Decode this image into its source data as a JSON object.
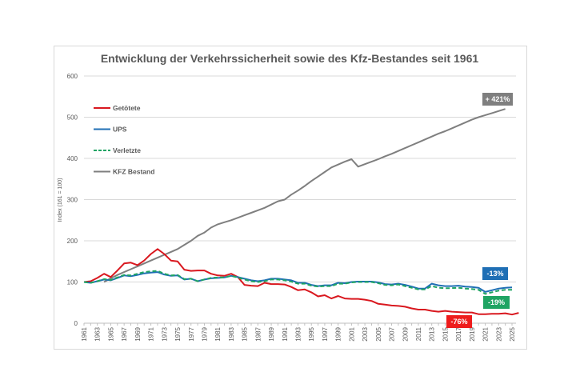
{
  "chart_data": {
    "type": "line",
    "title": "Entwicklung der Verkehrssicherheit sowie des Kfz-Bestandes seit 1961",
    "ylabel": "Index (161 = 100)",
    "xlabel": "",
    "ylim": [
      0,
      600
    ],
    "yticks": [
      0,
      100,
      200,
      300,
      400,
      500,
      600
    ],
    "xrange": [
      1961,
      2025
    ],
    "xticks": [
      1961,
      1963,
      1965,
      1967,
      1969,
      1971,
      1973,
      1975,
      1977,
      1979,
      1981,
      1983,
      1985,
      1987,
      1989,
      1991,
      1993,
      1995,
      1997,
      1999,
      2001,
      2003,
      2005,
      2007,
      2009,
      2011,
      2013,
      2015,
      2017,
      2019,
      2021,
      2023,
      2025
    ],
    "grid": "horizontal",
    "legend_position": "top-left",
    "series": [
      {
        "name": "Getötete",
        "color": "#d9181f",
        "dash": false,
        "start": 1961,
        "values": [
          100,
          102,
          110,
          120,
          112,
          128,
          145,
          147,
          141,
          152,
          168,
          180,
          168,
          152,
          150,
          130,
          127,
          128,
          128,
          120,
          116,
          115,
          120,
          112,
          93,
          91,
          90,
          98,
          95,
          95,
          94,
          88,
          80,
          82,
          75,
          65,
          68,
          60,
          66,
          60,
          59,
          59,
          57,
          54,
          47,
          45,
          43,
          42,
          40,
          36,
          33,
          33,
          30,
          28,
          30,
          28,
          27,
          26,
          26,
          22,
          22,
          23,
          23,
          24,
          21,
          25
        ]
      },
      {
        "name": "UPS",
        "color": "#1f6fb5",
        "dash": false,
        "start": 1961,
        "values": [
          100,
          98,
          102,
          106,
          104,
          110,
          116,
          114,
          117,
          121,
          123,
          124,
          118,
          115,
          116,
          106,
          108,
          102,
          106,
          109,
          110,
          111,
          115,
          112,
          108,
          104,
          102,
          104,
          108,
          108,
          106,
          104,
          98,
          98,
          93,
          90,
          92,
          92,
          98,
          97,
          100,
          101,
          101,
          101,
          99,
          95,
          94,
          96,
          93,
          89,
          84,
          84,
          96,
          92,
          90,
          90,
          91,
          89,
          88,
          86,
          76,
          80,
          84,
          86,
          87
        ]
      },
      {
        "name": "Verletzte",
        "color": "#1fa463",
        "dash": true,
        "start": 1961,
        "values": [
          100,
          98,
          102,
          107,
          105,
          111,
          117,
          116,
          120,
          124,
          126,
          127,
          120,
          116,
          117,
          107,
          108,
          102,
          106,
          110,
          111,
          111,
          115,
          111,
          106,
          102,
          100,
          102,
          106,
          106,
          104,
          101,
          96,
          96,
          91,
          89,
          90,
          90,
          96,
          96,
          99,
          100,
          100,
          100,
          97,
          93,
          92,
          94,
          90,
          86,
          82,
          82,
          90,
          86,
          85,
          85,
          86,
          84,
          83,
          81,
          71,
          75,
          79,
          81,
          81
        ]
      },
      {
        "name": "KFZ Bestand",
        "color": "#7f7f7f",
        "dash": false,
        "start": 1961,
        "values": [
          100,
          109,
          117,
          124,
          131,
          138,
          145,
          152,
          159,
          166,
          173,
          180,
          190,
          200,
          212,
          220,
          232,
          240,
          245,
          250,
          256,
          262,
          268,
          274,
          280,
          288,
          296,
          300,
          312,
          322,
          333,
          345,
          356,
          367,
          378,
          385,
          392,
          398,
          380,
          386,
          392,
          398,
          405,
          411,
          418,
          425,
          432,
          439,
          446,
          453,
          460,
          466,
          473,
          480,
          487,
          494,
          500,
          505,
          510,
          515,
          520
        ]
      }
    ],
    "series_start_overrides": {
      "KFZ Bestand": 1964
    },
    "annotations": [
      {
        "text": "+ 421%",
        "color": "#7f7f7f",
        "series": "KFZ Bestand"
      },
      {
        "text": "-13%",
        "color": "#1f6fb5",
        "series": "UPS"
      },
      {
        "text": "-19%",
        "color": "#1fa463",
        "series": "Verletzte"
      },
      {
        "text": "-76%",
        "color": "#ee1c1c",
        "series": "Getötete"
      }
    ]
  }
}
